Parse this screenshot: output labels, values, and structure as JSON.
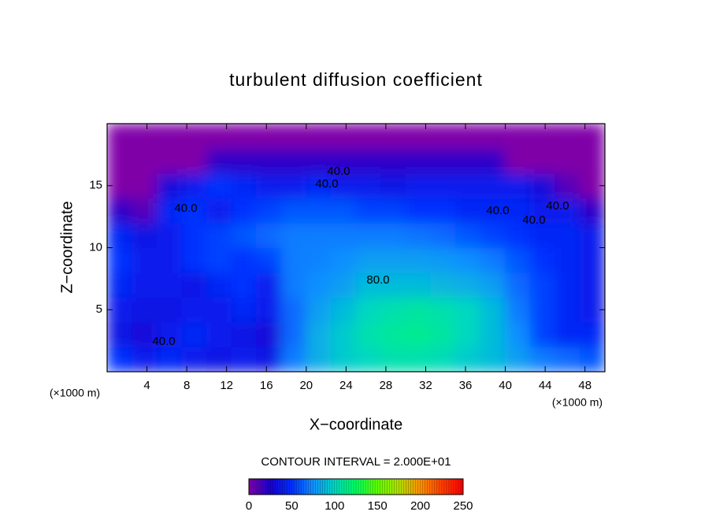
{
  "chart_data": {
    "type": "contour",
    "title": "turbulent diffusion coefficient",
    "xlabel": "X−coordinate",
    "ylabel": "Z−coordinate",
    "xunit": "(×1000 m)",
    "yunit": "(×1000 m)",
    "xlim": [
      0,
      50
    ],
    "ylim": [
      0,
      20
    ],
    "xticks": [
      4,
      8,
      12,
      16,
      20,
      24,
      28,
      32,
      36,
      40,
      44,
      48
    ],
    "yticks": [
      5,
      10,
      15
    ],
    "x": [
      1.25,
      3.75,
      6.25,
      8.75,
      11.25,
      13.75,
      16.25,
      18.75,
      21.25,
      23.75,
      26.25,
      28.75,
      31.25,
      33.75,
      36.25,
      38.75,
      41.25,
      43.75,
      46.25,
      48.75
    ],
    "y": [
      1,
      3,
      5,
      7,
      9,
      11,
      13,
      15,
      17,
      19
    ],
    "z": [
      [
        50,
        40,
        45,
        40,
        35,
        40,
        35,
        70,
        85,
        95,
        100,
        105,
        105,
        102,
        95,
        90,
        80,
        70,
        65,
        60
      ],
      [
        35,
        30,
        40,
        45,
        40,
        35,
        30,
        65,
        85,
        95,
        105,
        110,
        112,
        108,
        100,
        90,
        75,
        55,
        45,
        45
      ],
      [
        40,
        35,
        35,
        40,
        40,
        45,
        40,
        65,
        80,
        90,
        100,
        105,
        108,
        105,
        100,
        90,
        70,
        55,
        45,
        40
      ],
      [
        45,
        40,
        40,
        35,
        45,
        50,
        40,
        70,
        75,
        80,
        90,
        90,
        90,
        88,
        85,
        80,
        65,
        55,
        45,
        40
      ],
      [
        50,
        40,
        40,
        50,
        55,
        50,
        55,
        70,
        72,
        75,
        80,
        80,
        80,
        78,
        75,
        70,
        60,
        50,
        45,
        40
      ],
      [
        45,
        35,
        40,
        50,
        55,
        60,
        65,
        70,
        70,
        70,
        70,
        70,
        68,
        65,
        60,
        55,
        50,
        45,
        45,
        40
      ],
      [
        20,
        10,
        45,
        50,
        40,
        50,
        55,
        60,
        60,
        60,
        55,
        55,
        50,
        50,
        45,
        45,
        45,
        40,
        40,
        20
      ],
      [
        0,
        0,
        30,
        40,
        50,
        45,
        40,
        40,
        45,
        40,
        40,
        35,
        40,
        40,
        40,
        40,
        40,
        30,
        10,
        0
      ],
      [
        0,
        0,
        0,
        0,
        20,
        20,
        20,
        20,
        20,
        20,
        20,
        20,
        20,
        20,
        20,
        20,
        0,
        0,
        0,
        0
      ],
      [
        0,
        0,
        0,
        0,
        0,
        0,
        0,
        0,
        0,
        0,
        0,
        0,
        0,
        0,
        0,
        0,
        0,
        0,
        0,
        0
      ]
    ],
    "annotations": [
      "40.0",
      "40.0",
      "40.0",
      "40.0",
      "40.0",
      "40.0",
      "40.0",
      "80.0"
    ],
    "colorbar_title": "CONTOUR INTERVAL = 2.000E+01",
    "clim": [
      0,
      250
    ],
    "colorbar_ticks": [
      0,
      50,
      100,
      150,
      200,
      250
    ],
    "colormap": [
      "#8000a8",
      "#1800d0",
      "#0030ff",
      "#1090ff",
      "#00d8c0",
      "#00ff60",
      "#60ff00",
      "#b0e000",
      "#ff9000",
      "#ff4000",
      "#ff0000"
    ]
  }
}
